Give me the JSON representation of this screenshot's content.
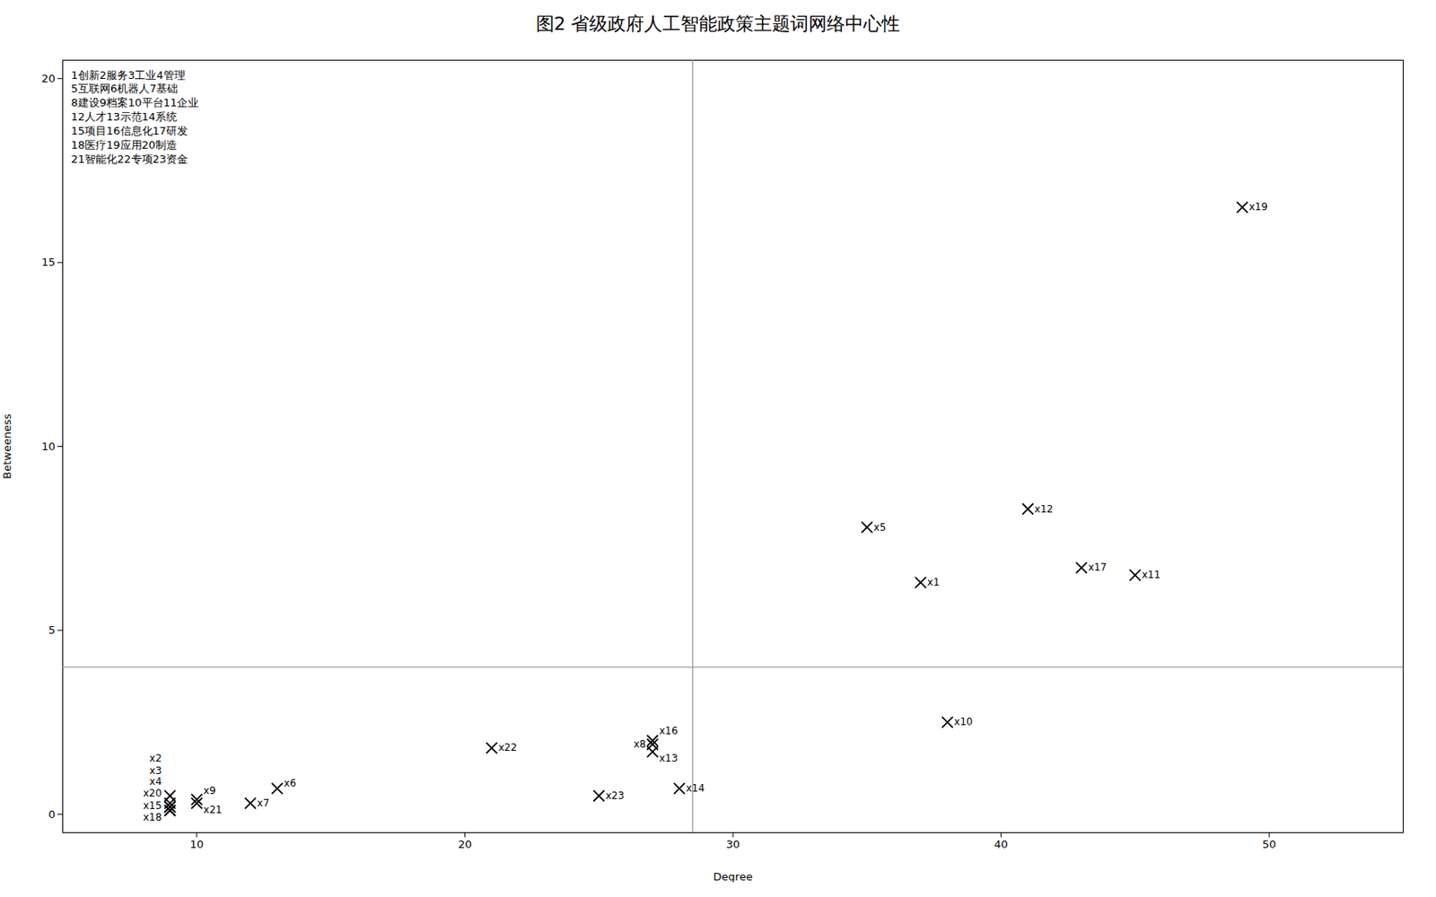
{
  "chart_data": {
    "type": "scatter",
    "title": "图2    省级政府人工智能政策主题词网络中心性",
    "x": [
      37,
      9,
      9,
      9,
      35,
      13,
      12,
      27,
      10,
      38,
      45,
      41,
      27,
      28,
      9,
      27,
      43,
      9,
      49,
      9,
      10,
      21,
      25
    ],
    "values": [
      6.3,
      0.5,
      0.3,
      0.2,
      7.8,
      0.7,
      0.3,
      1.9,
      0.4,
      2.5,
      6.5,
      8.3,
      1.7,
      0.7,
      0.1,
      2.0,
      6.7,
      0.1,
      16.5,
      0.2,
      0.3,
      1.8,
      0.5
    ],
    "labels": [
      "x1",
      "x2",
      "x3",
      "x4",
      "x5",
      "x6",
      "x7",
      "x8",
      "x9",
      "x10",
      "x11",
      "x12",
      "x13",
      "x14",
      "x15",
      "x16",
      "x17",
      "x18",
      "x19",
      "x20",
      "x21",
      "x22",
      "x23"
    ],
    "marker": "x",
    "color": "black",
    "xlabel": "Degree",
    "ylabel": "Betweeness",
    "xlim": [
      5,
      55
    ],
    "ylim": [
      -0.5,
      20.5
    ],
    "xticks": [
      10,
      20,
      30,
      40,
      50
    ],
    "yticks": [
      0,
      5,
      10,
      15,
      20
    ],
    "reference_lines": [
      {
        "axis": "x",
        "value": 28.5
      },
      {
        "axis": "y",
        "value": 4.0
      }
    ],
    "annotations": [
      "1创新2服务3工业4管理",
      "5互联网6机器人7基础",
      "8建设9档案10平台11企业",
      "12人才13示范14系统",
      "15项目16信息化17研发",
      "18医疗19应用20制造",
      "21智能化22专项23资金"
    ]
  }
}
